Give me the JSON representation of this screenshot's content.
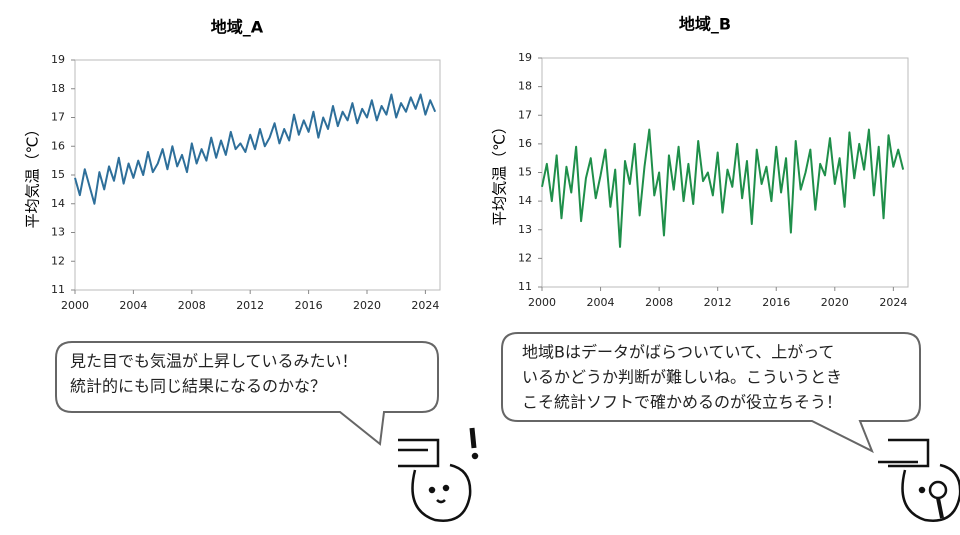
{
  "chart_data": [
    {
      "type": "line",
      "title": "地域_A",
      "ylabel": "平均気温（℃）",
      "xlim": [
        2000,
        2025
      ],
      "ylim": [
        11,
        19
      ],
      "xticks": [
        2000,
        2004,
        2008,
        2012,
        2016,
        2020,
        2024
      ],
      "yticks": [
        11,
        12,
        13,
        14,
        15,
        16,
        17,
        18,
        19
      ],
      "x": [
        2000,
        2000.33,
        2000.67,
        2001,
        2001.33,
        2001.67,
        2002,
        2002.33,
        2002.67,
        2003,
        2003.33,
        2003.67,
        2004,
        2004.33,
        2004.67,
        2005,
        2005.33,
        2005.67,
        2006,
        2006.33,
        2006.67,
        2007,
        2007.33,
        2007.67,
        2008,
        2008.33,
        2008.67,
        2009,
        2009.33,
        2009.67,
        2010,
        2010.33,
        2010.67,
        2011,
        2011.33,
        2011.67,
        2012,
        2012.33,
        2012.67,
        2013,
        2013.33,
        2013.67,
        2014,
        2014.33,
        2014.67,
        2015,
        2015.33,
        2015.67,
        2016,
        2016.33,
        2016.67,
        2017,
        2017.33,
        2017.67,
        2018,
        2018.33,
        2018.67,
        2019,
        2019.33,
        2019.67,
        2020,
        2020.33,
        2020.67,
        2021,
        2021.33,
        2021.67,
        2022,
        2022.33,
        2022.67,
        2023,
        2023.33,
        2023.67,
        2024,
        2024.33,
        2024.67
      ],
      "series": [
        {
          "color": "#2e6f9a",
          "values": [
            14.9,
            14.3,
            15.2,
            14.6,
            14.0,
            15.1,
            14.5,
            15.3,
            14.8,
            15.6,
            14.7,
            15.4,
            14.9,
            15.5,
            15.0,
            15.8,
            15.1,
            15.4,
            15.9,
            15.2,
            16.0,
            15.3,
            15.7,
            15.1,
            16.1,
            15.4,
            15.9,
            15.5,
            16.3,
            15.6,
            16.2,
            15.7,
            16.5,
            15.9,
            16.1,
            15.8,
            16.4,
            15.9,
            16.6,
            16.0,
            16.3,
            16.8,
            16.1,
            16.6,
            16.2,
            17.1,
            16.4,
            16.9,
            16.5,
            17.2,
            16.3,
            17.0,
            16.6,
            17.4,
            16.7,
            17.2,
            16.9,
            17.5,
            16.8,
            17.3,
            17.0,
            17.6,
            16.9,
            17.4,
            17.1,
            17.8,
            17.0,
            17.5,
            17.2,
            17.7,
            17.3,
            17.8,
            17.1,
            17.6,
            17.2
          ]
        }
      ]
    },
    {
      "type": "line",
      "title": "地域_B",
      "ylabel": "平均気温（℃）",
      "xlim": [
        2000,
        2025
      ],
      "ylim": [
        11,
        19
      ],
      "xticks": [
        2000,
        2004,
        2008,
        2012,
        2016,
        2020,
        2024
      ],
      "yticks": [
        11,
        12,
        13,
        14,
        15,
        16,
        17,
        18,
        19
      ],
      "x": [
        2000,
        2000.33,
        2000.67,
        2001,
        2001.33,
        2001.67,
        2002,
        2002.33,
        2002.67,
        2003,
        2003.33,
        2003.67,
        2004,
        2004.33,
        2004.67,
        2005,
        2005.33,
        2005.67,
        2006,
        2006.33,
        2006.67,
        2007,
        2007.33,
        2007.67,
        2008,
        2008.33,
        2008.67,
        2009,
        2009.33,
        2009.67,
        2010,
        2010.33,
        2010.67,
        2011,
        2011.33,
        2011.67,
        2012,
        2012.33,
        2012.67,
        2013,
        2013.33,
        2013.67,
        2014,
        2014.33,
        2014.67,
        2015,
        2015.33,
        2015.67,
        2016,
        2016.33,
        2016.67,
        2017,
        2017.33,
        2017.67,
        2018,
        2018.33,
        2018.67,
        2019,
        2019.33,
        2019.67,
        2020,
        2020.33,
        2020.67,
        2021,
        2021.33,
        2021.67,
        2022,
        2022.33,
        2022.67,
        2023,
        2023.33,
        2023.67,
        2024,
        2024.33,
        2024.67
      ],
      "series": [
        {
          "color": "#1f8f4a",
          "values": [
            14.5,
            15.3,
            14.0,
            15.6,
            13.4,
            15.2,
            14.3,
            15.9,
            13.3,
            14.8,
            15.5,
            14.1,
            14.9,
            15.8,
            13.8,
            15.1,
            12.4,
            15.4,
            14.6,
            16.0,
            13.5,
            15.2,
            16.5,
            14.2,
            15.0,
            12.8,
            15.6,
            14.4,
            15.9,
            14.0,
            15.3,
            13.9,
            16.1,
            14.7,
            15.0,
            14.2,
            15.7,
            13.6,
            15.1,
            14.5,
            16.0,
            14.1,
            15.4,
            13.2,
            15.8,
            14.6,
            15.2,
            14.0,
            15.9,
            14.3,
            15.5,
            12.9,
            16.1,
            14.4,
            15.0,
            15.8,
            13.7,
            15.3,
            14.9,
            16.2,
            14.6,
            15.5,
            13.8,
            16.4,
            14.8,
            16.0,
            15.1,
            16.5,
            14.2,
            15.9,
            13.4,
            16.3,
            15.2,
            15.8,
            15.1
          ]
        }
      ]
    }
  ],
  "bubbles": [
    {
      "lines": [
        "見た目でも気温が上昇しているみたい！",
        "統計的にも同じ結果になるのかな？"
      ]
    },
    {
      "lines": [
        "地域Bはデータがばらついていて、上がって",
        "いるかどうか判断が難しいね。こういうとき",
        "こそ統計ソフトで確かめるのが役立ちそう！"
      ]
    }
  ]
}
